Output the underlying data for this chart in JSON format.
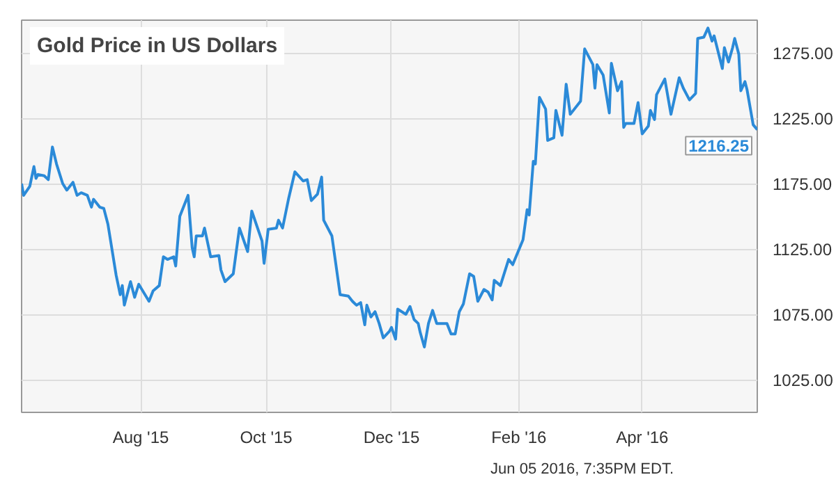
{
  "chart_data": {
    "type": "line",
    "title": "Gold Price in US Dollars",
    "x": [
      "2015-06-04",
      "2015-06-05",
      "2015-06-08",
      "2015-06-10",
      "2015-06-11",
      "2015-06-12",
      "2015-06-15",
      "2015-06-17",
      "2015-06-19",
      "2015-06-21",
      "2015-06-24",
      "2015-06-26",
      "2015-06-29",
      "2015-07-01",
      "2015-07-03",
      "2015-07-06",
      "2015-07-08",
      "2015-07-09",
      "2015-07-12",
      "2015-07-14",
      "2015-07-16",
      "2015-07-20",
      "2015-07-22",
      "2015-07-23",
      "2015-07-24",
      "2015-07-27",
      "2015-07-29",
      "2015-07-31",
      "2015-08-05",
      "2015-08-07",
      "2015-08-10",
      "2015-08-12",
      "2015-08-14",
      "2015-08-17",
      "2015-08-18",
      "2015-08-20",
      "2015-08-24",
      "2015-08-26",
      "2015-08-27",
      "2015-08-28",
      "2015-08-31",
      "2015-09-01",
      "2015-09-04",
      "2015-09-08",
      "2015-09-09",
      "2015-09-11",
      "2015-09-15",
      "2015-09-18",
      "2015-09-22",
      "2015-09-24",
      "2015-09-29",
      "2015-09-30",
      "2015-10-02",
      "2015-10-06",
      "2015-10-07",
      "2015-10-09",
      "2015-10-12",
      "2015-10-15",
      "2015-10-19",
      "2015-10-21",
      "2015-10-23",
      "2015-10-26",
      "2015-10-28",
      "2015-10-29",
      "2015-11-02",
      "2015-11-06",
      "2015-11-10",
      "2015-11-12",
      "2015-11-14",
      "2015-11-16",
      "2015-11-18",
      "2015-11-19",
      "2015-11-21",
      "2015-11-23",
      "2015-11-25",
      "2015-11-27",
      "2015-11-30",
      "2015-12-01",
      "2015-12-03",
      "2015-12-04",
      "2015-12-08",
      "2015-12-10",
      "2015-12-12",
      "2015-12-14",
      "2015-12-15",
      "2015-12-17",
      "2015-12-19",
      "2015-12-21",
      "2015-12-23",
      "2015-12-28",
      "2015-12-30",
      "2016-01-01",
      "2016-01-03",
      "2016-01-05",
      "2016-01-08",
      "2016-01-10",
      "2016-01-12",
      "2016-01-15",
      "2016-01-17",
      "2016-01-19",
      "2016-01-20",
      "2016-01-23",
      "2016-01-27",
      "2016-01-29",
      "2016-02-03",
      "2016-02-05",
      "2016-02-06",
      "2016-02-08",
      "2016-02-09",
      "2016-02-11",
      "2016-02-14",
      "2016-02-15",
      "2016-02-18",
      "2016-02-19",
      "2016-02-22",
      "2016-02-24",
      "2016-02-26",
      "2016-03-02",
      "2016-03-04",
      "2016-03-08",
      "2016-03-09",
      "2016-03-10",
      "2016-03-13",
      "2016-03-16",
      "2016-03-17",
      "2016-03-20",
      "2016-03-22",
      "2016-03-23",
      "2016-03-24",
      "2016-03-28",
      "2016-03-30",
      "2016-04-01",
      "2016-04-04",
      "2016-04-05",
      "2016-04-07",
      "2016-04-08",
      "2016-04-12",
      "2016-04-15",
      "2016-04-19",
      "2016-04-21",
      "2016-04-24",
      "2016-04-27",
      "2016-04-28",
      "2016-05-01",
      "2016-05-03",
      "2016-05-05",
      "2016-05-06",
      "2016-05-10",
      "2016-05-11",
      "2016-05-13",
      "2016-05-15",
      "2016-05-16",
      "2016-05-18",
      "2016-05-19",
      "2016-05-21",
      "2016-05-22",
      "2016-05-25",
      "2016-05-27"
    ],
    "series": [
      {
        "color": "#2b8ad8",
        "values": [
          1175,
          1166,
          1173,
          1188,
          1179,
          1182,
          1181,
          1178,
          1203,
          1190,
          1175,
          1170,
          1176,
          1166,
          1168,
          1166,
          1157,
          1163,
          1157,
          1156,
          1144,
          1105,
          1090,
          1097,
          1082,
          1100,
          1088,
          1098,
          1085,
          1093,
          1097,
          1119,
          1117,
          1119,
          1112,
          1150,
          1166,
          1126,
          1119,
          1135,
          1135,
          1141,
          1119,
          1120,
          1109,
          1100,
          1106,
          1141,
          1123,
          1154,
          1131,
          1114,
          1140,
          1141,
          1147,
          1141,
          1164,
          1184,
          1177,
          1178,
          1162,
          1167,
          1180,
          1147,
          1135,
          1090,
          1089,
          1085,
          1082,
          1084,
          1067,
          1082,
          1073,
          1077,
          1068,
          1057,
          1062,
          1065,
          1056,
          1079,
          1075,
          1081,
          1071,
          1068,
          1061,
          1050,
          1068,
          1078,
          1068,
          1068,
          1060,
          1060,
          1077,
          1083,
          1106,
          1104,
          1085,
          1094,
          1092,
          1086,
          1101,
          1097,
          1117,
          1113,
          1132,
          1155,
          1151,
          1192,
          1190,
          1241,
          1232,
          1208,
          1210,
          1231,
          1212,
          1251,
          1228,
          1238,
          1278,
          1266,
          1248,
          1266,
          1258,
          1229,
          1267,
          1246,
          1253,
          1218,
          1221,
          1221,
          1237,
          1213,
          1219,
          1231,
          1224,
          1243,
          1255,
          1228,
          1256,
          1248,
          1239,
          1244,
          1286,
          1287,
          1294,
          1284,
          1288,
          1263,
          1279,
          1268,
          1279,
          1286,
          1274,
          1246,
          1253,
          1247,
          1220,
          1216.25
        ]
      }
    ],
    "xlim": [
      "2015-06-04",
      "2016-05-27"
    ],
    "xticks": [
      {
        "value": "2015-08-01",
        "label": "Aug '15"
      },
      {
        "value": "2015-10-01",
        "label": "Oct '15"
      },
      {
        "value": "2015-12-01",
        "label": "Dec '15"
      },
      {
        "value": "2016-02-01",
        "label": "Feb '16"
      },
      {
        "value": "2016-04-01",
        "label": "Apr '16"
      }
    ],
    "ylim": [
      1000,
      1300
    ],
    "yticks": [
      {
        "value": 1025,
        "label": "1025.00"
      },
      {
        "value": 1075,
        "label": "1075.00"
      },
      {
        "value": 1125,
        "label": "1125.00"
      },
      {
        "value": 1175,
        "label": "1175.00"
      },
      {
        "value": 1225,
        "label": "1225.00"
      },
      {
        "value": 1275,
        "label": "1275.00"
      }
    ],
    "grid": true,
    "annotations": [
      {
        "text": "1216.25",
        "x": "2016-05-27",
        "y": 1216.25
      },
      "Jun 05 2016, 7:35PM EDT."
    ]
  }
}
